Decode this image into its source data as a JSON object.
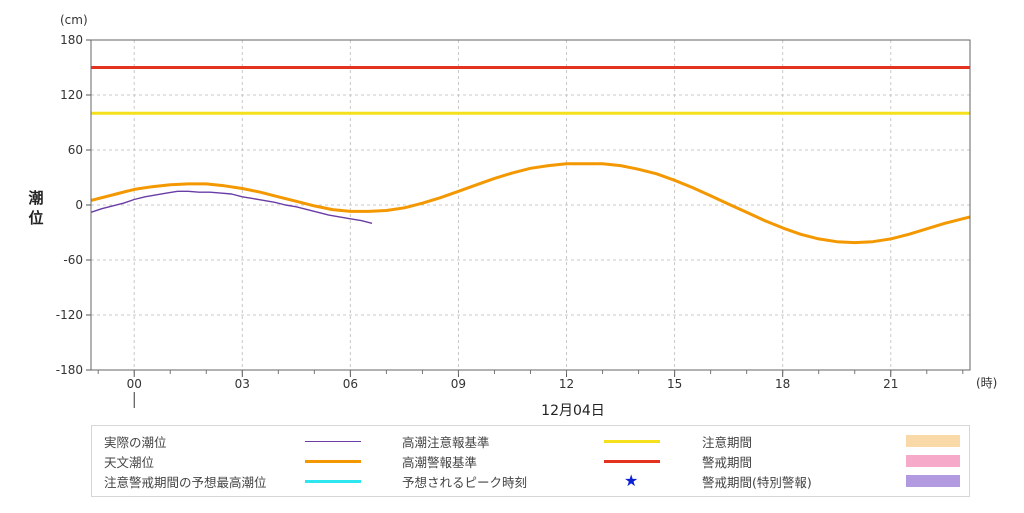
{
  "chart_data": {
    "type": "line",
    "yunit": "(cm)",
    "ylabel": "潮位",
    "xunit": "(時)",
    "date_label": "12月04日",
    "xlim": [
      -1.2,
      23.2
    ],
    "ylim": [
      -180,
      180
    ],
    "yticks": [
      180,
      120,
      60,
      0,
      -60,
      -120,
      -180
    ],
    "xticks": [
      {
        "x": 0,
        "label": "00"
      },
      {
        "x": 3,
        "label": "03"
      },
      {
        "x": 6,
        "label": "06"
      },
      {
        "x": 9,
        "label": "09"
      },
      {
        "x": 12,
        "label": "12"
      },
      {
        "x": 15,
        "label": "15"
      },
      {
        "x": 18,
        "label": "18"
      },
      {
        "x": 21,
        "label": "21"
      }
    ],
    "grid": true,
    "series": [
      {
        "name": "天文潮位",
        "color": "#f39800",
        "x": [
          -1.2,
          -0.5,
          0,
          0.5,
          1,
          1.5,
          2,
          2.5,
          3,
          3.5,
          4,
          4.5,
          5,
          5.5,
          6,
          6.5,
          7,
          7.5,
          8,
          8.5,
          9,
          9.5,
          10,
          10.5,
          11,
          11.5,
          12,
          12.5,
          13,
          13.5,
          14,
          14.5,
          15,
          15.5,
          16,
          16.5,
          17,
          17.5,
          18,
          18.5,
          19,
          19.5,
          20,
          20.5,
          21,
          21.5,
          22,
          22.5,
          23.2
        ],
        "y": [
          5,
          12,
          17,
          20,
          22,
          23,
          23,
          21,
          18,
          14,
          9,
          4,
          -1,
          -5,
          -7,
          -7,
          -6,
          -3,
          2,
          8,
          15,
          22,
          29,
          35,
          40,
          43,
          45,
          45,
          45,
          43,
          39,
          34,
          27,
          19,
          10,
          1,
          -8,
          -17,
          -25,
          -32,
          -37,
          -40,
          -41,
          -40,
          -37,
          -32,
          -26,
          -20,
          -13
        ]
      },
      {
        "name": "実際の潮位",
        "color": "#6a3da6",
        "x": [
          -1.2,
          -0.9,
          -0.6,
          -0.3,
          0,
          0.3,
          0.6,
          0.9,
          1.2,
          1.5,
          1.8,
          2.1,
          2.4,
          2.7,
          3.0,
          3.3,
          3.6,
          3.9,
          4.2,
          4.5,
          4.8,
          5.1,
          5.4,
          5.7,
          6.0,
          6.3,
          6.6
        ],
        "y": [
          -8,
          -4,
          -1,
          2,
          6,
          9,
          11,
          13,
          15,
          15,
          14,
          14,
          13,
          12,
          9,
          7,
          5,
          3,
          0,
          -2,
          -5,
          -8,
          -11,
          -13,
          -15,
          -17,
          -20
        ]
      },
      {
        "name": "高潮注意報基準",
        "color": "#f5e11b",
        "x": [
          -1.2,
          23.2
        ],
        "y": [
          100,
          100
        ]
      },
      {
        "name": "高潮警報基準",
        "color": "#e3321f",
        "x": [
          -1.2,
          23.2
        ],
        "y": [
          150,
          150
        ]
      }
    ]
  },
  "legend": [
    {
      "label": "実際の潮位",
      "kind": "line-thin",
      "color": "#6a3da6"
    },
    {
      "label": "天文潮位",
      "kind": "line",
      "color": "#f39800"
    },
    {
      "label": "注意警戒期間の予想最高潮位",
      "kind": "line",
      "color": "#2ee6f0"
    },
    {
      "label": "高潮注意報基準",
      "kind": "line",
      "color": "#f5e11b"
    },
    {
      "label": "高潮警報基準",
      "kind": "line",
      "color": "#e3321f"
    },
    {
      "label": "予想されるピーク時刻",
      "kind": "star",
      "color": "#0b1fd6"
    },
    {
      "label": "注意期間",
      "kind": "box",
      "color": "#f9d9a8"
    },
    {
      "label": "警戒期間",
      "kind": "box",
      "color": "#f6a9c8"
    },
    {
      "label": "警戒期間(特別警報)",
      "kind": "box",
      "color": "#b19ae0"
    }
  ]
}
